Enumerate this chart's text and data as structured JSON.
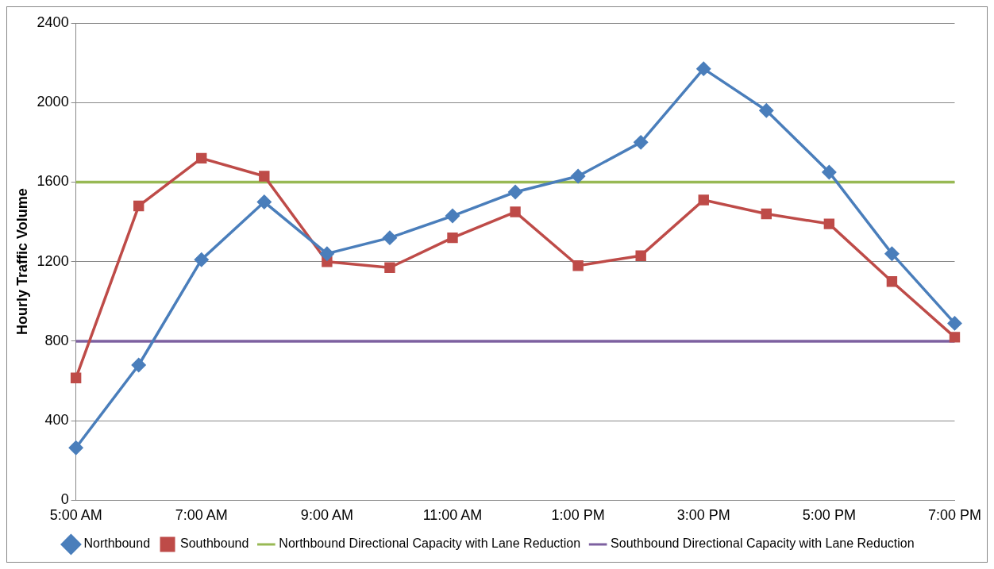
{
  "chart_data": {
    "type": "line",
    "ylabel": "Hourly Traffic Volume",
    "categories": [
      "5:00 AM",
      null,
      "7:00 AM",
      null,
      "9:00 AM",
      null,
      "11:00 AM",
      null,
      "1:00 PM",
      null,
      "3:00 PM",
      null,
      "5:00 PM",
      null,
      "7:00 PM"
    ],
    "series": [
      {
        "name": "Northbound",
        "color": "#4a7ebb",
        "marker": "diamond",
        "values": [
          264,
          680,
          1210,
          1500,
          1240,
          1320,
          1430,
          1550,
          1630,
          1800,
          2170,
          1960,
          1650,
          1240,
          890
        ]
      },
      {
        "name": "Southbound",
        "color": "#be4b48",
        "marker": "square",
        "values": [
          615,
          1480,
          1720,
          1630,
          1200,
          1170,
          1320,
          1450,
          1180,
          1230,
          1510,
          1440,
          1390,
          1100,
          820
        ]
      },
      {
        "name": "Northbound Directional Capacity with Lane Reduction",
        "color": "#98b954",
        "marker": "none",
        "values": [
          1600,
          1600,
          1600,
          1600,
          1600,
          1600,
          1600,
          1600,
          1600,
          1600,
          1600,
          1600,
          1600,
          1600,
          1600
        ]
      },
      {
        "name": "Southbound Directional Capacity with Lane Reduction",
        "color": "#7d60a0",
        "marker": "none",
        "values": [
          800,
          800,
          800,
          800,
          800,
          800,
          800,
          800,
          800,
          800,
          800,
          800,
          800,
          800,
          800
        ]
      }
    ],
    "ylim": [
      0,
      2400
    ],
    "yticks": [
      0,
      400,
      800,
      1200,
      1600,
      2000,
      2400
    ],
    "grid": "y",
    "legend": "bottom",
    "line_style": "solid"
  }
}
